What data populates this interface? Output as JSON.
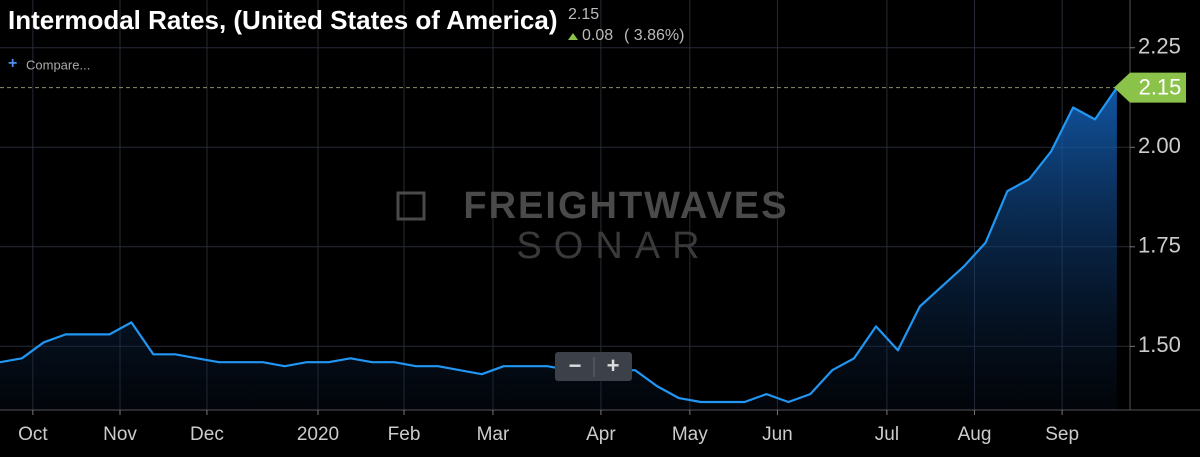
{
  "chart_data": {
    "type": "area",
    "title": "Intermodal Rates, (United States of America)",
    "change": 0.08,
    "change_percent": "( 3.86%)",
    "compare_label": "Compare...",
    "watermark": [
      "FREIGHTWAVES",
      "SONAR"
    ],
    "zoom_controls": [
      "−",
      "+"
    ],
    "x": [
      0,
      1,
      2,
      3,
      4,
      5,
      6,
      7,
      8,
      9,
      10,
      11,
      12,
      13,
      14,
      15,
      16,
      17,
      18,
      19,
      20,
      21,
      22,
      23,
      24,
      25,
      26,
      27,
      28,
      29,
      30,
      31,
      32,
      33,
      34,
      35,
      36,
      37,
      38,
      39,
      40,
      41,
      42,
      43,
      44,
      45,
      46,
      47,
      48,
      49,
      50,
      51
    ],
    "values": [
      1.46,
      1.47,
      1.51,
      1.53,
      1.53,
      1.53,
      1.56,
      1.48,
      1.48,
      1.47,
      1.46,
      1.46,
      1.46,
      1.45,
      1.46,
      1.46,
      1.47,
      1.46,
      1.46,
      1.45,
      1.45,
      1.44,
      1.43,
      1.45,
      1.45,
      1.45,
      1.44,
      1.44,
      1.44,
      1.44,
      1.4,
      1.37,
      1.36,
      1.36,
      1.36,
      1.38,
      1.36,
      1.38,
      1.44,
      1.47,
      1.55,
      1.49,
      1.6,
      1.65,
      1.7,
      1.76,
      1.89,
      1.92,
      1.99,
      2.1,
      2.07,
      2.15
    ],
    "color": "#2196f3",
    "last_value_color": "#8bc34a",
    "xlim": [
      0,
      51.6
    ],
    "ylim": [
      1.34,
      2.37
    ],
    "xticks": [
      {
        "value": 1.5,
        "label": "Oct"
      },
      {
        "value": 5.48,
        "label": "Nov"
      },
      {
        "value": 9.45,
        "label": "Dec"
      },
      {
        "value": 14.52,
        "label": "2020"
      },
      {
        "value": 18.45,
        "label": "Feb"
      },
      {
        "value": 22.51,
        "label": "Mar"
      },
      {
        "value": 27.44,
        "label": "Apr"
      },
      {
        "value": 31.5,
        "label": "May"
      },
      {
        "value": 35.5,
        "label": "Jun"
      },
      {
        "value": 40.5,
        "label": "Jul"
      },
      {
        "value": 44.5,
        "label": "Aug"
      },
      {
        "value": 48.5,
        "label": "Sep"
      }
    ],
    "yticks": [
      {
        "value": 1.5,
        "label": "1.50"
      },
      1.75,
      {
        "value": 2,
        "label": "2.00"
      },
      2.25
    ],
    "grid": true
  }
}
